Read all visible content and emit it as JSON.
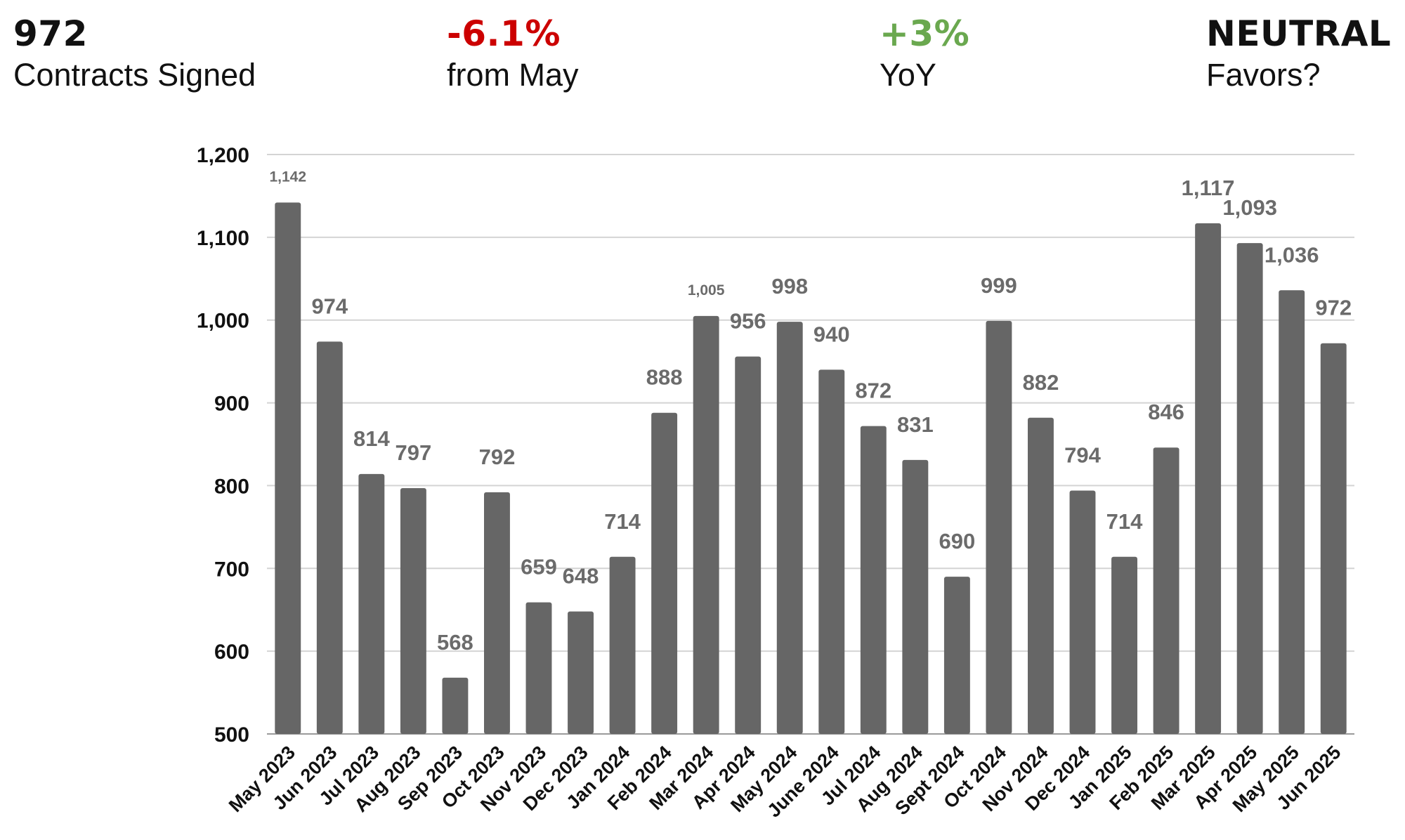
{
  "kpis": {
    "contracts": {
      "value": "972",
      "label": "Contracts Signed",
      "color": "#111111"
    },
    "monthly_change": {
      "value": "-6.1%",
      "label": "from May",
      "color": "#cc0000"
    },
    "yoy_change": {
      "value": "+3%",
      "label": "YoY",
      "color": "#6aa84f"
    },
    "sentiment": {
      "value": "NEUTRAL",
      "label": "Favors?",
      "color": "#111111"
    }
  },
  "chart_data": {
    "type": "bar",
    "title": "",
    "xlabel": "",
    "ylabel": "",
    "ylim": [
      500,
      1200
    ],
    "yticks": [
      500,
      600,
      700,
      800,
      900,
      1000,
      1100,
      1200
    ],
    "ytick_labels": [
      "500",
      "600",
      "700",
      "800",
      "900",
      "1,000",
      "1,100",
      "1,200"
    ],
    "grid": true,
    "bar_color": "#666666",
    "label_color": "#6b6b6b",
    "categories": [
      "May 2023",
      "Jun 2023",
      "Jul 2023",
      "Aug 2023",
      "Sep 2023",
      "Oct 2023",
      "Nov 2023",
      "Dec 2023",
      "Jan 2024",
      "Feb 2024",
      "Mar 2024",
      "Apr 2024",
      "May 2024",
      "June 2024",
      "Jul 2024",
      "Aug 2024",
      "Sept 2024",
      "Oct 2024",
      "Nov 2024",
      "Dec 2024",
      "Jan 2025",
      "Feb 2025",
      "Mar 2025",
      "Apr 2025",
      "May 2025",
      "Jun 2025"
    ],
    "values": [
      1142,
      974,
      814,
      797,
      568,
      792,
      659,
      648,
      714,
      888,
      1005,
      956,
      998,
      940,
      872,
      831,
      690,
      999,
      882,
      794,
      714,
      846,
      1117,
      1093,
      1036,
      972
    ],
    "data_labels": [
      "1,142",
      "974",
      "814",
      "797",
      "568",
      "792",
      "659",
      "648",
      "714",
      "888",
      "1,005",
      "956",
      "998",
      "940",
      "872",
      "831",
      "690",
      "999",
      "882",
      "794",
      "714",
      "846",
      "1,117",
      "1,093",
      "1,036",
      "972"
    ]
  }
}
